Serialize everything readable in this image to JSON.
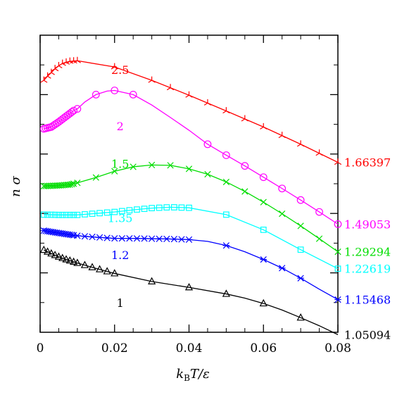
{
  "chart_data": {
    "type": "line",
    "xlabel_parts": [
      "k",
      "B",
      "T/ε"
    ],
    "ylabel": "n σ",
    "xlim": [
      0,
      0.08
    ],
    "ylim": [
      0,
      1
    ],
    "x_ticks": [
      "0",
      "0.02",
      "0.04",
      "0.06",
      "0.08"
    ],
    "x_tick_values": [
      0,
      0.02,
      0.04,
      0.06,
      0.08
    ],
    "y_tick_labels_shown": false,
    "series": [
      {
        "name": "2.5",
        "end_label": "1.66397",
        "color": "#ff0000",
        "marker": "tripod",
        "points": [
          [
            0.001,
            0.848
          ],
          [
            0.002,
            0.862
          ],
          [
            0.003,
            0.874
          ],
          [
            0.004,
            0.887
          ],
          [
            0.005,
            0.897
          ],
          [
            0.006,
            0.905
          ],
          [
            0.007,
            0.909
          ],
          [
            0.008,
            0.912
          ],
          [
            0.009,
            0.913
          ],
          [
            0.01,
            0.914
          ],
          [
            0.02,
            0.893
          ],
          [
            0.03,
            0.848
          ],
          [
            0.04,
            0.798
          ],
          [
            0.05,
            0.745
          ],
          [
            0.06,
            0.691
          ],
          [
            0.07,
            0.633
          ],
          [
            0.08,
            0.572
          ]
        ],
        "marker_x": [
          0.001,
          0.002,
          0.003,
          0.004,
          0.005,
          0.006,
          0.007,
          0.008,
          0.009,
          0.01,
          0.02,
          0.03,
          0.035,
          0.04,
          0.045,
          0.05,
          0.055,
          0.06,
          0.065,
          0.07,
          0.075,
          0.08
        ]
      },
      {
        "name": "2",
        "end_label": "1.49053",
        "color": "#ff00ff",
        "marker": "circle",
        "points": [
          [
            0.001,
            0.685
          ],
          [
            0.003,
            0.691
          ],
          [
            0.005,
            0.708
          ],
          [
            0.007,
            0.727
          ],
          [
            0.009,
            0.746
          ],
          [
            0.01,
            0.752
          ],
          [
            0.012,
            0.775
          ],
          [
            0.015,
            0.8
          ],
          [
            0.018,
            0.812
          ],
          [
            0.02,
            0.814
          ],
          [
            0.025,
            0.8
          ],
          [
            0.03,
            0.765
          ],
          [
            0.035,
            0.723
          ],
          [
            0.04,
            0.68
          ],
          [
            0.045,
            0.633
          ],
          [
            0.05,
            0.596
          ],
          [
            0.055,
            0.56
          ],
          [
            0.06,
            0.522
          ],
          [
            0.065,
            0.484
          ],
          [
            0.07,
            0.445
          ],
          [
            0.075,
            0.405
          ],
          [
            0.08,
            0.364
          ]
        ],
        "marker_x": [
          0.001,
          0.0015,
          0.002,
          0.0025,
          0.003,
          0.0035,
          0.004,
          0.0045,
          0.005,
          0.0055,
          0.006,
          0.0065,
          0.007,
          0.0075,
          0.008,
          0.0085,
          0.009,
          0.01,
          0.015,
          0.02,
          0.025,
          0.045,
          0.05,
          0.055,
          0.06,
          0.065,
          0.07,
          0.075,
          0.08
        ]
      },
      {
        "name": "1.5",
        "end_label": "1.29294",
        "color": "#00dd00",
        "marker": "cross",
        "points": [
          [
            0.001,
            0.492
          ],
          [
            0.005,
            0.494
          ],
          [
            0.008,
            0.497
          ],
          [
            0.01,
            0.503
          ],
          [
            0.015,
            0.521
          ],
          [
            0.02,
            0.542
          ],
          [
            0.025,
            0.557
          ],
          [
            0.03,
            0.563
          ],
          [
            0.035,
            0.562
          ],
          [
            0.04,
            0.55
          ],
          [
            0.045,
            0.532
          ],
          [
            0.05,
            0.506
          ],
          [
            0.055,
            0.474
          ],
          [
            0.06,
            0.438
          ],
          [
            0.065,
            0.399
          ],
          [
            0.07,
            0.358
          ],
          [
            0.075,
            0.315
          ],
          [
            0.08,
            0.271
          ]
        ],
        "marker_x": [
          0.001,
          0.0015,
          0.002,
          0.0025,
          0.003,
          0.0035,
          0.004,
          0.0045,
          0.005,
          0.0055,
          0.006,
          0.0065,
          0.007,
          0.0075,
          0.008,
          0.0085,
          0.009,
          0.01,
          0.015,
          0.02,
          0.025,
          0.03,
          0.035,
          0.04,
          0.045,
          0.05,
          0.055,
          0.06,
          0.065,
          0.07,
          0.075,
          0.08
        ]
      },
      {
        "name": "1.35",
        "end_label": "1.22619",
        "color": "#00ffff",
        "marker": "square",
        "points": [
          [
            0.001,
            0.396
          ],
          [
            0.005,
            0.395
          ],
          [
            0.01,
            0.395
          ],
          [
            0.015,
            0.4
          ],
          [
            0.02,
            0.405
          ],
          [
            0.025,
            0.412
          ],
          [
            0.03,
            0.418
          ],
          [
            0.035,
            0.421
          ],
          [
            0.04,
            0.419
          ],
          [
            0.05,
            0.396
          ],
          [
            0.06,
            0.345
          ],
          [
            0.07,
            0.278
          ],
          [
            0.08,
            0.214
          ]
        ],
        "marker_x": [
          0.001,
          0.002,
          0.003,
          0.004,
          0.005,
          0.006,
          0.007,
          0.008,
          0.009,
          0.01,
          0.012,
          0.014,
          0.016,
          0.018,
          0.02,
          0.022,
          0.024,
          0.026,
          0.028,
          0.03,
          0.032,
          0.034,
          0.036,
          0.038,
          0.04,
          0.05,
          0.06,
          0.07,
          0.08
        ]
      },
      {
        "name": "1.2",
        "end_label": "1.15468",
        "color": "#0000ff",
        "marker": "asterisk",
        "points": [
          [
            0.001,
            0.342
          ],
          [
            0.005,
            0.334
          ],
          [
            0.01,
            0.325
          ],
          [
            0.015,
            0.32
          ],
          [
            0.02,
            0.316
          ],
          [
            0.025,
            0.316
          ],
          [
            0.03,
            0.315
          ],
          [
            0.035,
            0.314
          ],
          [
            0.04,
            0.312
          ],
          [
            0.045,
            0.306
          ],
          [
            0.05,
            0.292
          ],
          [
            0.055,
            0.271
          ],
          [
            0.06,
            0.245
          ],
          [
            0.065,
            0.216
          ],
          [
            0.07,
            0.182
          ],
          [
            0.075,
            0.145
          ],
          [
            0.08,
            0.11
          ]
        ],
        "marker_x": [
          0.001,
          0.0015,
          0.002,
          0.0025,
          0.003,
          0.0035,
          0.004,
          0.0045,
          0.005,
          0.0055,
          0.006,
          0.0065,
          0.007,
          0.0075,
          0.008,
          0.0085,
          0.009,
          0.01,
          0.012,
          0.014,
          0.016,
          0.018,
          0.02,
          0.022,
          0.024,
          0.026,
          0.028,
          0.03,
          0.032,
          0.034,
          0.036,
          0.038,
          0.04,
          0.05,
          0.06,
          0.065,
          0.07,
          0.08
        ]
      },
      {
        "name": "1",
        "end_label": "1.05094",
        "color": "#000000",
        "marker": "triangle",
        "points": [
          [
            0.001,
            0.277
          ],
          [
            0.003,
            0.265
          ],
          [
            0.005,
            0.254
          ],
          [
            0.007,
            0.245
          ],
          [
            0.01,
            0.233
          ],
          [
            0.015,
            0.215
          ],
          [
            0.02,
            0.198
          ],
          [
            0.03,
            0.171
          ],
          [
            0.04,
            0.151
          ],
          [
            0.05,
            0.129
          ],
          [
            0.055,
            0.115
          ],
          [
            0.06,
            0.097
          ],
          [
            0.065,
            0.075
          ],
          [
            0.07,
            0.049
          ],
          [
            0.075,
            0.022
          ],
          [
            0.08,
            -0.008
          ]
        ],
        "marker_x": [
          0.001,
          0.002,
          0.003,
          0.004,
          0.005,
          0.006,
          0.007,
          0.008,
          0.009,
          0.01,
          0.012,
          0.014,
          0.016,
          0.018,
          0.02,
          0.03,
          0.04,
          0.05,
          0.06,
          0.07
        ]
      }
    ]
  }
}
